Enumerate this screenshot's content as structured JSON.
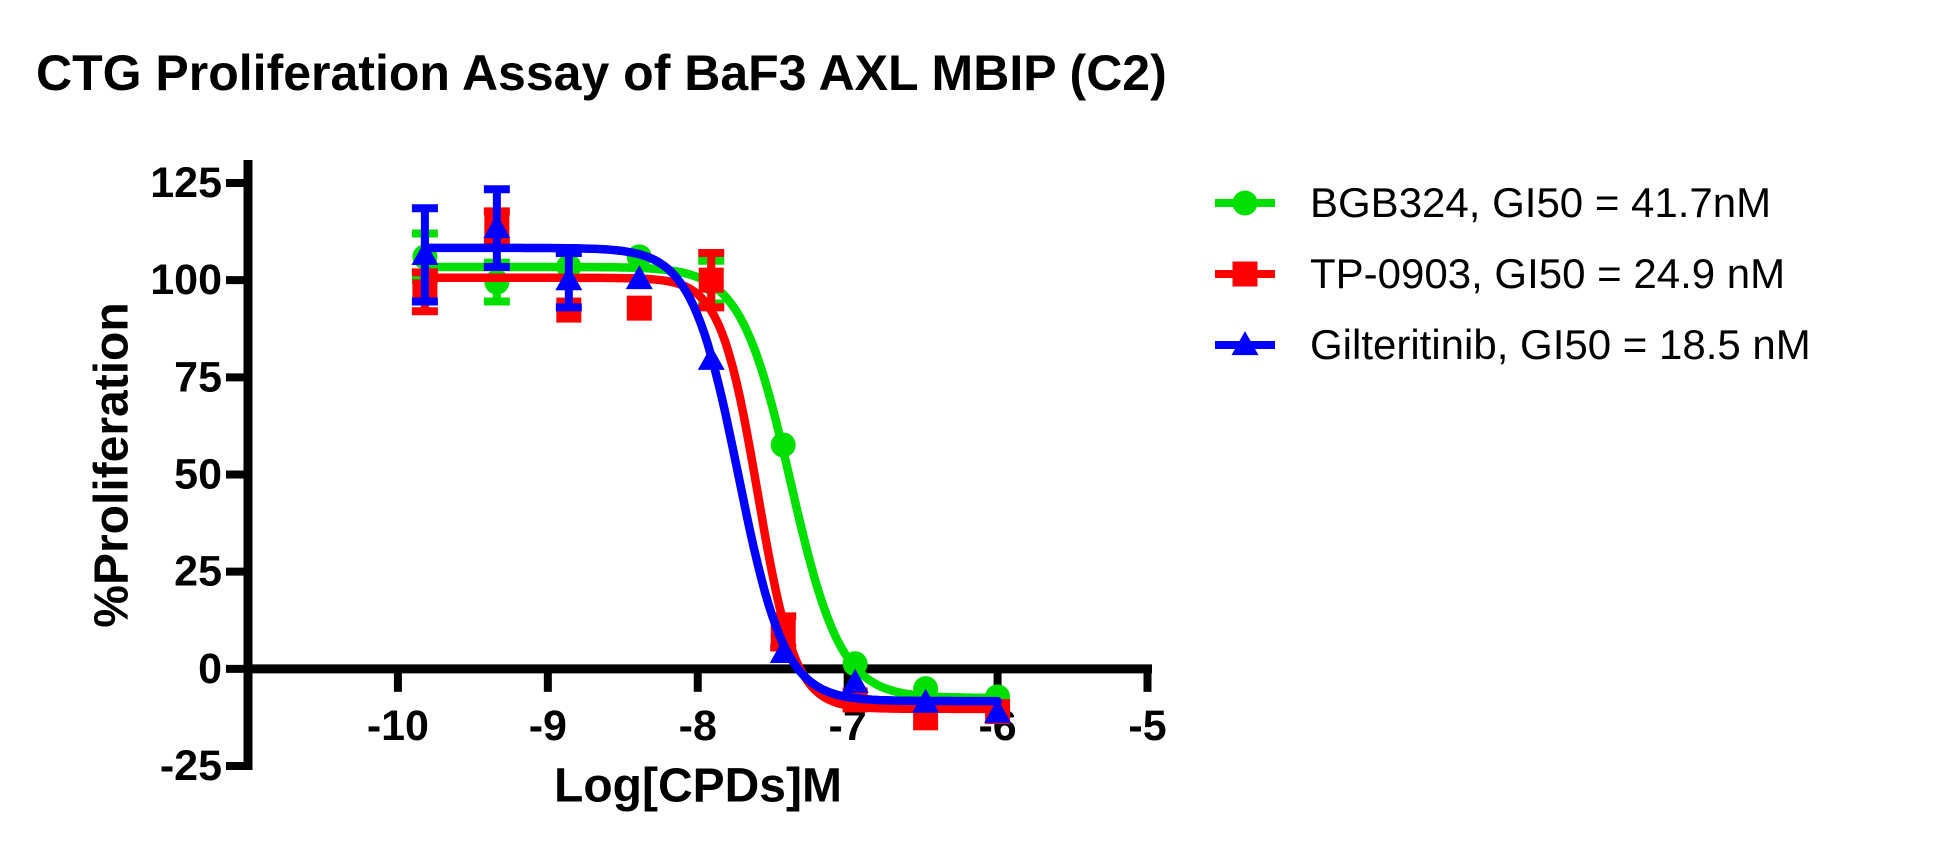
{
  "title": "CTG Proliferation Assay of BaF3 AXL MBIP (C2)",
  "chart_data": {
    "type": "scatter",
    "title": "CTG Proliferation Assay of BaF3 AXL MBIP (C2)",
    "xlabel": "Log[CPDs]M",
    "ylabel": "%Proliferation",
    "x_ticks": [
      -10,
      -9,
      -8,
      -7,
      -6,
      -5
    ],
    "y_ticks": [
      125,
      100,
      75,
      50,
      25,
      0,
      -25
    ],
    "x_range": [
      -11,
      -4.97
    ],
    "y_range": [
      -25,
      125
    ],
    "grid": false,
    "legend_position": "right",
    "background_color": "#FFFFFF",
    "axis_color": "#000000",
    "x": [
      -9.82,
      -9.34,
      -8.86,
      -8.39,
      -7.91,
      -7.43,
      -6.95,
      -6.48,
      -6.0
    ],
    "series": [
      {
        "name": "BGB324",
        "gi50": "41.7nM",
        "legend_label": "BGB324, GI50 = 41.7nM",
        "color": "#00E000",
        "marker": "circle",
        "values": [
          106.0,
          99.5,
          103.5,
          106.0,
          99.5,
          57.6,
          1.3,
          -5.1,
          -7.2
        ],
        "errors": [
          6,
          5,
          0,
          0,
          5.5,
          0,
          0,
          0,
          0
        ],
        "fit": {
          "top": 103.4,
          "bottom": -7.5,
          "log_ic50": -7.38,
          "hill": 2.6
        }
      },
      {
        "name": "TP-0903",
        "gi50": "24.9 nM",
        "legend_label": "TP-0903, GI50 = 24.9 nM",
        "color": "#FF0000",
        "marker": "square",
        "values": [
          97.0,
          113.7,
          92.3,
          92.8,
          100.0,
          9.5,
          -8.0,
          -12.6,
          -11.0
        ],
        "errors": [
          5,
          4,
          0,
          0,
          7,
          4,
          0,
          0,
          0
        ],
        "fit": {
          "top": 100.6,
          "bottom": -10.3,
          "log_ic50": -7.6,
          "hill": 3.5
        }
      },
      {
        "name": "Gilteritinib",
        "gi50": "18.5 nM",
        "legend_label": "Gilteritinib, GI50 = 18.5 nM",
        "color": "#0000FF",
        "marker": "triangle",
        "values": [
          106.5,
          113.4,
          100.0,
          100.3,
          79.5,
          4.1,
          -3.6,
          -8.7,
          -11.3
        ],
        "errors": [
          12,
          10,
          7,
          0,
          0,
          0,
          0,
          0,
          0
        ],
        "fit": {
          "top": 108.3,
          "bottom": -8.3,
          "log_ic50": -7.73,
          "hill": 2.8
        }
      }
    ]
  }
}
